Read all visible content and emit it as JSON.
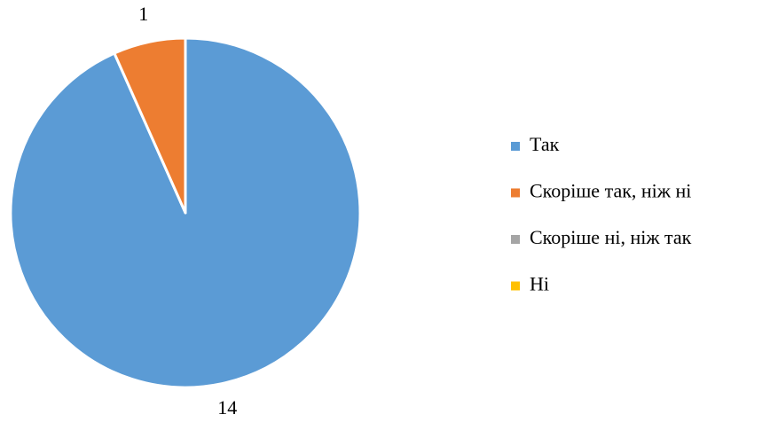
{
  "chart_data": {
    "type": "pie",
    "categories": [
      "Так",
      "Скоріше так, ніж ні",
      "Скоріше ні, ніж так",
      "Ні"
    ],
    "values": [
      14,
      1,
      0,
      0
    ],
    "colors": [
      "#5b9bd5",
      "#ed7d31",
      "#a5a5a5",
      "#ffc000"
    ],
    "legend": "right"
  }
}
